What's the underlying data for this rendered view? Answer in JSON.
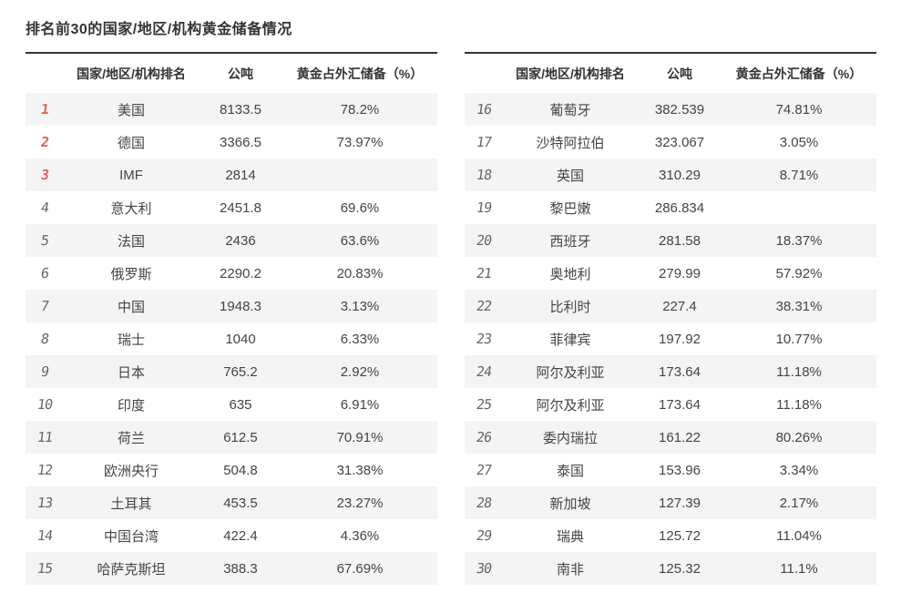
{
  "page_title": "排名前30的国家/地区/机构黄金储备情况",
  "columns": {
    "rank": "",
    "name": "国家/地区/机构排名",
    "tons": "公吨",
    "pct": "黄金占外汇储备（%）"
  },
  "colors": {
    "top3_rank_red": "#ee5f5b",
    "rank_gray": "#666666",
    "alt_row_bg": "#f4f4f4",
    "table_top_border": "#333333",
    "text": "#333333"
  },
  "chart_data": {
    "type": "table",
    "title": "排名前30的国家/地区/机构黄金储备情况",
    "columns": [
      "排名",
      "国家/地区/机构",
      "公吨",
      "黄金占外汇储备（%）"
    ],
    "note_empty_pct_rows": [
      3,
      19
    ]
  },
  "tables": [
    {
      "rows": [
        {
          "rank": "1",
          "name": "美国",
          "tons": "8133.5",
          "pct": "78.2%"
        },
        {
          "rank": "2",
          "name": "德国",
          "tons": "3366.5",
          "pct": "73.97%"
        },
        {
          "rank": "3",
          "name": "IMF",
          "tons": "2814",
          "pct": ""
        },
        {
          "rank": "4",
          "name": "意大利",
          "tons": "2451.8",
          "pct": "69.6%"
        },
        {
          "rank": "5",
          "name": "法国",
          "tons": "2436",
          "pct": "63.6%"
        },
        {
          "rank": "6",
          "name": "俄罗斯",
          "tons": "2290.2",
          "pct": "20.83%"
        },
        {
          "rank": "7",
          "name": "中国",
          "tons": "1948.3",
          "pct": "3.13%"
        },
        {
          "rank": "8",
          "name": "瑞士",
          "tons": "1040",
          "pct": "6.33%"
        },
        {
          "rank": "9",
          "name": "日本",
          "tons": "765.2",
          "pct": "2.92%"
        },
        {
          "rank": "10",
          "name": "印度",
          "tons": "635",
          "pct": "6.91%"
        },
        {
          "rank": "11",
          "name": "荷兰",
          "tons": "612.5",
          "pct": "70.91%"
        },
        {
          "rank": "12",
          "name": "欧洲央行",
          "tons": "504.8",
          "pct": "31.38%"
        },
        {
          "rank": "13",
          "name": "土耳其",
          "tons": "453.5",
          "pct": "23.27%"
        },
        {
          "rank": "14",
          "name": "中国台湾",
          "tons": "422.4",
          "pct": "4.36%"
        },
        {
          "rank": "15",
          "name": "哈萨克斯坦",
          "tons": "388.3",
          "pct": "67.69%"
        }
      ]
    },
    {
      "rows": [
        {
          "rank": "16",
          "name": "葡萄牙",
          "tons": "382.539",
          "pct": "74.81%"
        },
        {
          "rank": "17",
          "name": "沙特阿拉伯",
          "tons": "323.067",
          "pct": "3.05%"
        },
        {
          "rank": "18",
          "name": "英国",
          "tons": "310.29",
          "pct": "8.71%"
        },
        {
          "rank": "19",
          "name": "黎巴嫩",
          "tons": "286.834",
          "pct": ""
        },
        {
          "rank": "20",
          "name": "西班牙",
          "tons": "281.58",
          "pct": "18.37%"
        },
        {
          "rank": "21",
          "name": "奥地利",
          "tons": "279.99",
          "pct": "57.92%"
        },
        {
          "rank": "22",
          "name": "比利时",
          "tons": "227.4",
          "pct": "38.31%"
        },
        {
          "rank": "23",
          "name": "菲律宾",
          "tons": "197.92",
          "pct": "10.77%"
        },
        {
          "rank": "24",
          "name": "阿尔及利亚",
          "tons": "173.64",
          "pct": "11.18%"
        },
        {
          "rank": "25",
          "name": "阿尔及利亚",
          "tons": "173.64",
          "pct": "11.18%"
        },
        {
          "rank": "26",
          "name": "委内瑞拉",
          "tons": "161.22",
          "pct": "80.26%"
        },
        {
          "rank": "27",
          "name": "泰国",
          "tons": "153.96",
          "pct": "3.34%"
        },
        {
          "rank": "28",
          "name": "新加坡",
          "tons": "127.39",
          "pct": "2.17%"
        },
        {
          "rank": "29",
          "name": "瑞典",
          "tons": "125.72",
          "pct": "11.04%"
        },
        {
          "rank": "30",
          "name": "南非",
          "tons": "125.32",
          "pct": "11.1%"
        }
      ]
    }
  ]
}
